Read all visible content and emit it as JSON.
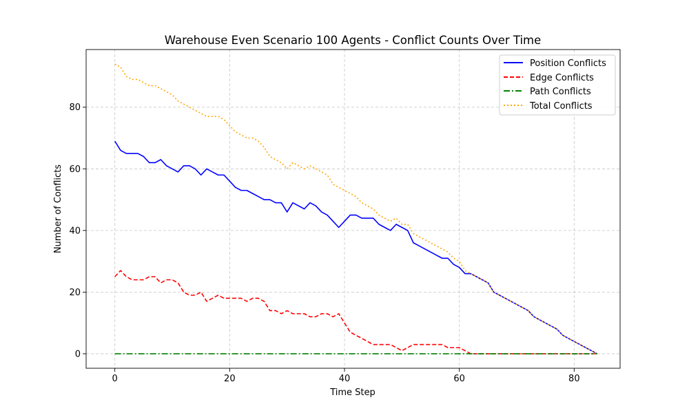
{
  "chart_data": {
    "type": "line",
    "title": "Warehouse Even Scenario 100 Agents - Conflict Counts Over Time",
    "xlabel": "Time Step",
    "ylabel": "Number of Conflicts",
    "xlim": [
      -5,
      88
    ],
    "ylim": [
      -4.7,
      98.7
    ],
    "xticks": [
      0,
      20,
      40,
      60,
      80
    ],
    "yticks": [
      0,
      20,
      40,
      60,
      80
    ],
    "grid": true,
    "legend_position": "top-right",
    "series": [
      {
        "name": "Position Conflicts",
        "color": "#0000ff",
        "dash": "solid",
        "values": [
          69,
          66,
          65,
          65,
          65,
          64,
          62,
          62,
          63,
          61,
          60,
          59,
          61,
          61,
          60,
          58,
          60,
          59,
          58,
          58,
          56,
          54,
          53,
          53,
          52,
          51,
          50,
          50,
          49,
          49,
          46,
          49,
          48,
          47,
          49,
          48,
          46,
          45,
          43,
          41,
          43,
          45,
          45,
          44,
          44,
          44,
          42,
          41,
          40,
          42,
          41,
          40,
          36,
          35,
          34,
          33,
          32,
          31,
          31,
          29,
          28,
          26,
          26,
          25,
          24,
          23,
          20,
          19,
          18,
          17,
          16,
          15,
          14,
          12,
          11,
          10,
          9,
          8,
          6,
          5,
          4,
          3,
          2,
          1,
          0
        ]
      },
      {
        "name": "Edge Conflicts",
        "color": "#ff0000",
        "dash": "dashed",
        "values": [
          25,
          27,
          25,
          24,
          24,
          24,
          25,
          25,
          23,
          24,
          24,
          23,
          20,
          19,
          19,
          20,
          17,
          18,
          19,
          18,
          18,
          18,
          18,
          17,
          18,
          18,
          17,
          14,
          14,
          13,
          14,
          13,
          13,
          13,
          12,
          12,
          13,
          13,
          12,
          13,
          10,
          7,
          6,
          5,
          4,
          3,
          3,
          3,
          3,
          2,
          1,
          2,
          3,
          3,
          3,
          3,
          3,
          3,
          2,
          2,
          2,
          1,
          0,
          0,
          0,
          0,
          0,
          0,
          0,
          0,
          0,
          0,
          0,
          0,
          0,
          0,
          0,
          0,
          0,
          0,
          0,
          0,
          0,
          0,
          0
        ]
      },
      {
        "name": "Path Conflicts",
        "color": "#008000",
        "dash": "dashdot",
        "values": [
          0,
          0,
          0,
          0,
          0,
          0,
          0,
          0,
          0,
          0,
          0,
          0,
          0,
          0,
          0,
          0,
          0,
          0,
          0,
          0,
          0,
          0,
          0,
          0,
          0,
          0,
          0,
          0,
          0,
          0,
          0,
          0,
          0,
          0,
          0,
          0,
          0,
          0,
          0,
          0,
          0,
          0,
          0,
          0,
          0,
          0,
          0,
          0,
          0,
          0,
          0,
          0,
          0,
          0,
          0,
          0,
          0,
          0,
          0,
          0,
          0,
          0,
          0,
          0,
          0,
          0,
          0,
          0,
          0,
          0,
          0,
          0,
          0,
          0,
          0,
          0,
          0,
          0,
          0,
          0,
          0,
          0,
          0,
          0,
          0
        ]
      },
      {
        "name": "Total Conflicts",
        "color": "#ffa500",
        "dash": "dotted",
        "values": [
          94,
          93,
          90,
          89,
          89,
          88,
          87,
          87,
          86,
          85,
          84,
          82,
          81,
          80,
          79,
          78,
          77,
          77,
          77,
          76,
          74,
          72,
          71,
          70,
          70,
          69,
          67,
          64,
          63,
          62,
          60,
          62,
          61,
          60,
          61,
          60,
          59,
          58,
          55,
          54,
          53,
          52,
          51,
          49,
          48,
          47,
          45,
          44,
          43,
          44,
          42,
          42,
          39,
          38,
          37,
          36,
          35,
          34,
          33,
          31,
          30,
          27,
          26,
          25,
          24,
          23,
          20,
          19,
          18,
          17,
          16,
          15,
          14,
          12,
          11,
          10,
          9,
          8,
          6,
          5,
          4,
          3,
          2,
          1,
          0
        ]
      }
    ]
  }
}
